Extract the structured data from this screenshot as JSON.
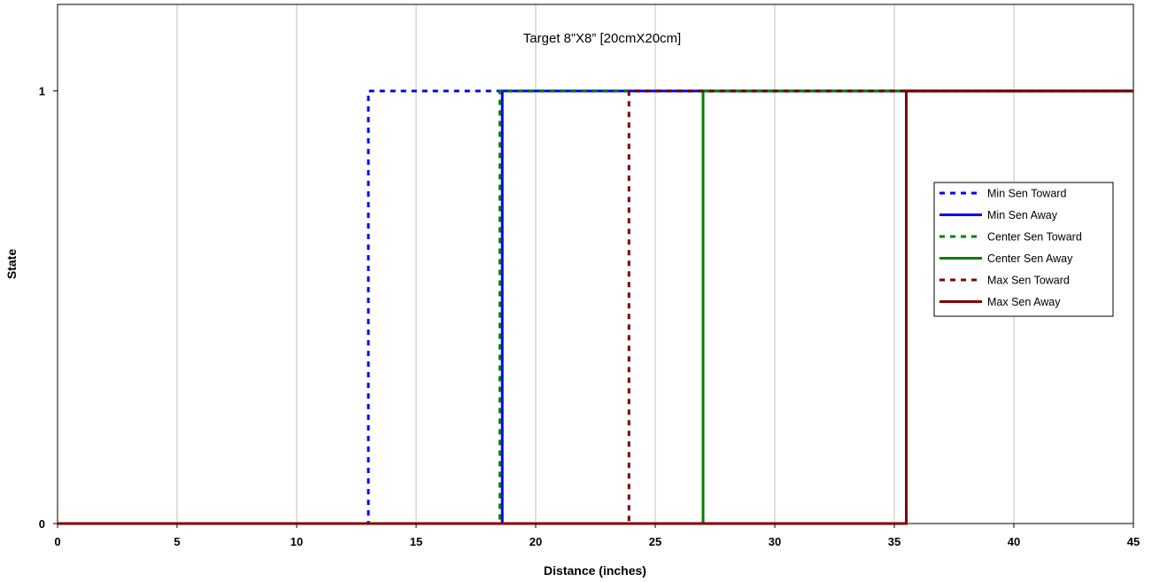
{
  "chart_data": {
    "type": "line",
    "title": "Target 8”X8” [20cmX20cm]",
    "xlabel": "Distance (inches)",
    "ylabel": "State",
    "xlim": [
      0,
      45
    ],
    "ylim": [
      0,
      1.2
    ],
    "xticks": [
      0,
      5,
      10,
      15,
      20,
      25,
      30,
      35,
      40,
      45
    ],
    "yticks": [
      0,
      1
    ],
    "grid": "vertical",
    "legend_position": "right",
    "series": [
      {
        "name": "Min Sen Toward",
        "color": "#0000ff",
        "style": "dashed",
        "x": [
          0,
          13,
          13,
          45
        ],
        "y": [
          0,
          0,
          1,
          1
        ]
      },
      {
        "name": "Min Sen Away",
        "color": "#0000ff",
        "style": "solid",
        "x": [
          0,
          18.6,
          18.6,
          45
        ],
        "y": [
          0,
          0,
          1,
          1
        ]
      },
      {
        "name": "Center Sen Toward",
        "color": "#008000",
        "style": "dashed",
        "x": [
          0,
          18.5,
          18.5,
          45
        ],
        "y": [
          0,
          0,
          1,
          1
        ]
      },
      {
        "name": "Center Sen Away",
        "color": "#008000",
        "style": "solid",
        "x": [
          0,
          27,
          27,
          45
        ],
        "y": [
          0,
          0,
          1,
          1
        ]
      },
      {
        "name": "Max Sen Toward",
        "color": "#800000",
        "style": "dashed",
        "x": [
          0,
          23.9,
          23.9,
          45
        ],
        "y": [
          0,
          0,
          1,
          1
        ]
      },
      {
        "name": "Max Sen Away",
        "color": "#800000",
        "style": "solid",
        "x": [
          0,
          35.5,
          35.5,
          45
        ],
        "y": [
          0,
          0,
          1,
          1
        ]
      }
    ]
  }
}
